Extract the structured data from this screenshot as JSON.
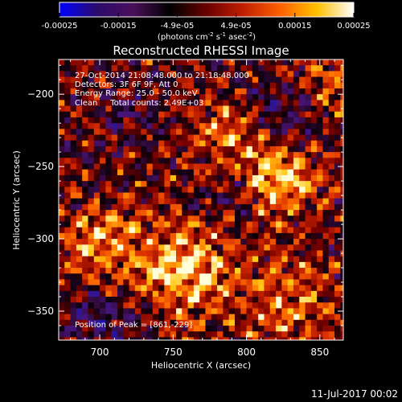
{
  "chart_data": {
    "type": "heatmap",
    "title": "Reconstructed RHESSI Image",
    "xlabel": "Heliocentric X (arcsec)",
    "ylabel": "Heliocentric Y (arcsec)",
    "xlim": [
      672,
      866
    ],
    "ylim": [
      -370,
      -176
    ],
    "x_ticks": [
      "700",
      "750",
      "800",
      "850"
    ],
    "y_ticks": [
      "-200",
      "-250",
      "-300",
      "-350"
    ],
    "colorbar": {
      "ticks": [
        "-0.00025",
        "-0.00015",
        "-4.9e-05",
        "4.9e-05",
        "0.00015",
        "0.00025"
      ],
      "units_parts": [
        "(photons cm",
        "-2",
        " s",
        "-1",
        " asec",
        "-2",
        ")"
      ],
      "range": [
        -0.00025,
        0.00025
      ],
      "colors": [
        "#0000ff",
        "#2a0a6e",
        "#4b0f5a",
        "#000000",
        "#6a0000",
        "#c02000",
        "#ff6000",
        "#ffc000",
        "#ffffff"
      ]
    },
    "info_lines": [
      "27-Oct-2014 21:08:48.000 to 21:18:48.000",
      "Detectors: 3F 6F 9F, Att 0",
      "Energy Range: 25.0 - 50.0 keV",
      "Clean     Total counts: 2.49E+03"
    ],
    "peak_label": "Position of Peak = [861,-229]",
    "peak": [
      861,
      -229
    ],
    "grid": false,
    "notes_style": "mottled noise pattern with bright hot spots near (820,-255) and (755,-320)"
  },
  "footer": {
    "date": "11-Jul-2017 00:02"
  }
}
